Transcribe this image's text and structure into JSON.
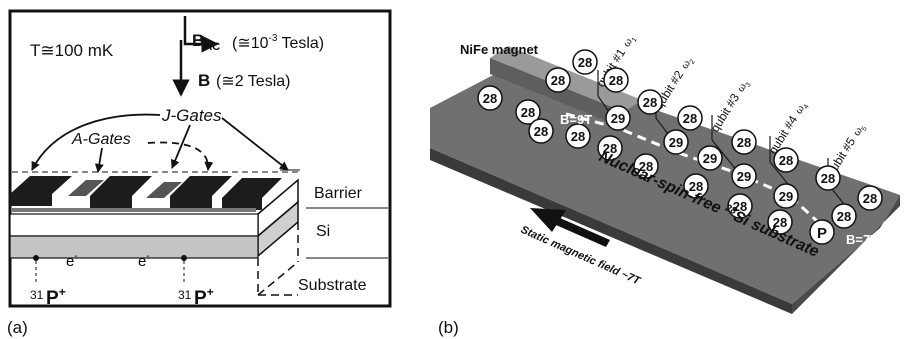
{
  "panel_a": {
    "label": "(a)",
    "temperature": "T≅100  mK",
    "b_ac_main": "B",
    "b_ac_sub": "AC",
    "b_ac_value": "(≅10",
    "b_ac_exp": "-3",
    "b_ac_tail": "Tesla)",
    "b_main": "B",
    "b_value": "(≅2  Tesla)",
    "j_gates": "J-Gates",
    "a_gates": "A-Gates",
    "barrier": "Barrier",
    "si": "Si",
    "substrate": "Substrate",
    "electron": "e",
    "electron_sup": "-",
    "donor_mass": "31",
    "donor": "P",
    "donor_sup": "+"
  },
  "panel_b": {
    "label": "(b)",
    "magnet_label": "NiFe magnet",
    "field_top": "B=9T",
    "field_bottom": "B=7T",
    "qubits": [
      {
        "label": "qubit #1",
        "omega": "ω",
        "sub": "1"
      },
      {
        "label": "qubit #2",
        "omega": "ω",
        "sub": "2"
      },
      {
        "label": "qubit #3",
        "omega": "ω",
        "sub": "3"
      },
      {
        "label": "qubit #4",
        "omega": "ω",
        "sub": "4"
      },
      {
        "label": "qubit #5",
        "omega": "ω",
        "sub": "5"
      }
    ],
    "substrate_prefix": "Nuclear-spin-free ",
    "substrate_sup": "28",
    "substrate_suffix": "Si substrate",
    "static_field": "Static magnetic field ~7T",
    "atom_28": "28",
    "atom_29": "29",
    "atom_p": "P"
  }
}
